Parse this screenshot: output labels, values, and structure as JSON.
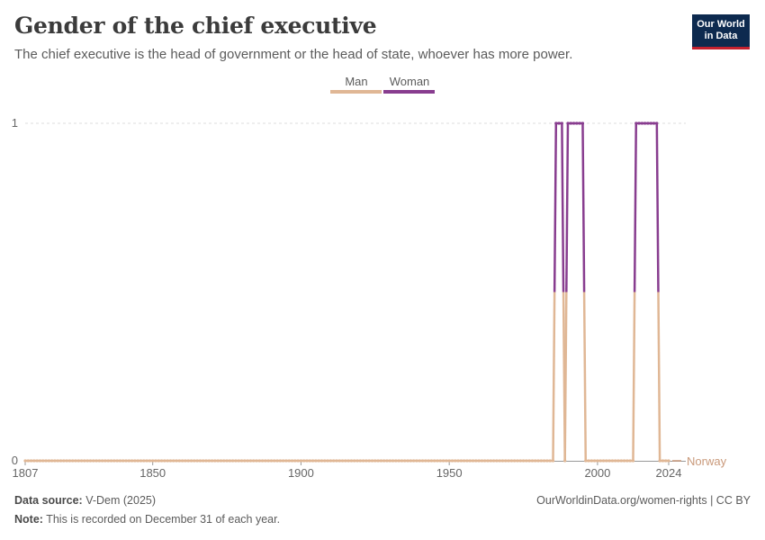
{
  "header": {
    "title": "Gender of the chief executive",
    "subtitle": "The chief executive is the head of government or the head of state, whoever has more power."
  },
  "logo": {
    "line1": "Our World",
    "line2": "in Data"
  },
  "footer": {
    "source_label": "Data source:",
    "source_value": "V-Dem (2025)",
    "note_label": "Note:",
    "note_value": "This is recorded on December 31 of each year.",
    "url_license": "OurWorldinData.org/women-rights | CC BY"
  },
  "colors": {
    "man": "#e0b795",
    "woman": "#883d8f",
    "country": "#c9997a",
    "grid": "#dddddd",
    "axis": "#999999"
  },
  "chart_data": {
    "type": "line",
    "entity": "Norway",
    "x_ticks": [
      1807,
      1850,
      1900,
      1950,
      2000,
      2024
    ],
    "y_ticks": [
      0,
      1
    ],
    "xlim": [
      1807,
      2024
    ],
    "ylim": [
      0,
      1
    ],
    "legend": [
      "Man",
      "Woman"
    ],
    "legend_position": "top-center",
    "woman_periods": [
      [
        1986,
        1988
      ],
      [
        1990,
        1995
      ],
      [
        2013,
        2020
      ]
    ],
    "series": [
      {
        "name": "Man",
        "description": "value 1 in years not in woman_periods, otherwise 0"
      },
      {
        "name": "Woman",
        "description": "value 1 in woman_periods years"
      }
    ]
  }
}
